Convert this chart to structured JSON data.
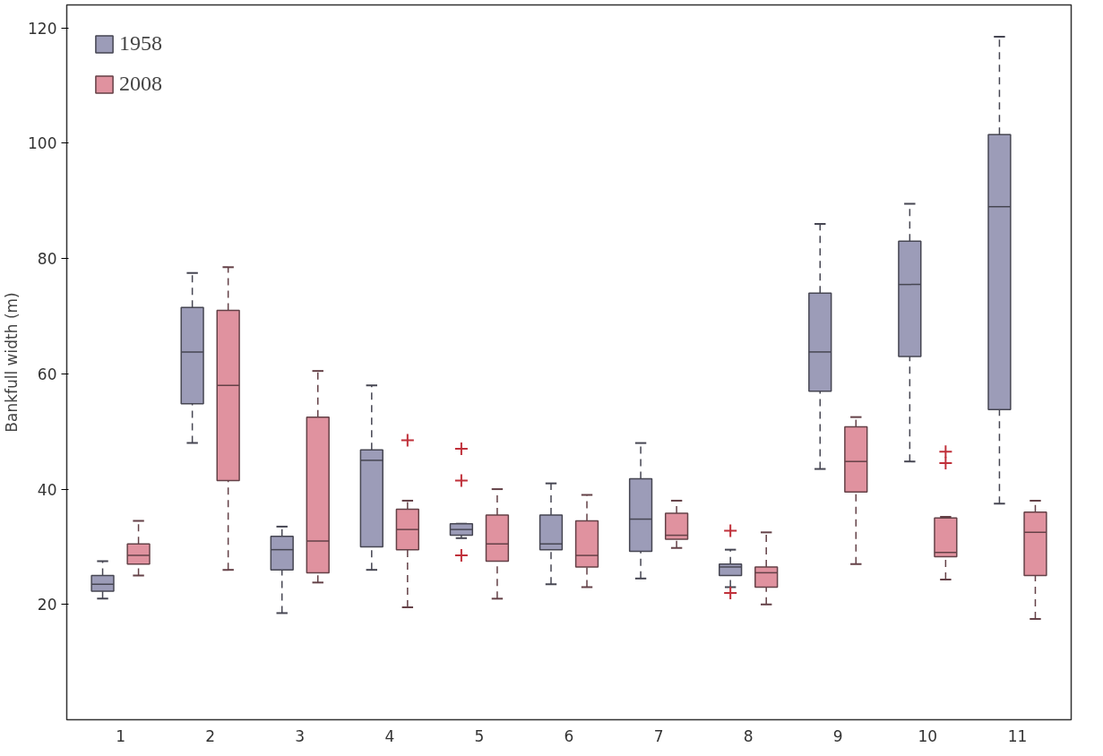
{
  "chart_data": {
    "type": "box",
    "ylabel": "Bankfull width (m)",
    "categories": [
      "1",
      "2",
      "3",
      "4",
      "5",
      "6",
      "7",
      "8",
      "9",
      "10",
      "11"
    ],
    "ylim": [
      0,
      124
    ],
    "yticks": [
      20,
      40,
      60,
      80,
      100,
      120
    ],
    "grid": false,
    "legend": "top left",
    "line_style": "dashed",
    "marker": "cross",
    "series": [
      {
        "name": "1958",
        "color": "#9c9cb8",
        "boxes": [
          {
            "low": 21,
            "q1": 22.3,
            "median": 23.5,
            "q3": 25,
            "high": 27.5
          },
          {
            "low": 48,
            "q1": 54.8,
            "median": 63.8,
            "q3": 71.5,
            "high": 77.5
          },
          {
            "low": 18.5,
            "q1": 26,
            "median": 29.5,
            "q3": 31.8,
            "high": 33.5
          },
          {
            "low": 26,
            "q1": 30,
            "median": 45,
            "q3": 46.8,
            "high": 58
          },
          {
            "low": 31.5,
            "q1": 32,
            "median": 33,
            "q3": 34,
            "high": 34,
            "outliers": [
              47,
              41.5,
              28.5
            ]
          },
          {
            "low": 23.5,
            "q1": 29.5,
            "median": 30.5,
            "q3": 35.5,
            "high": 41
          },
          {
            "low": 24.5,
            "q1": 29.2,
            "median": 34.8,
            "q3": 41.8,
            "high": 48
          },
          {
            "low": 23,
            "q1": 25,
            "median": 26.5,
            "q3": 27,
            "high": 29.5,
            "outliers": [
              32.8,
              22
            ]
          },
          {
            "low": 43.5,
            "q1": 57,
            "median": 63.8,
            "q3": 74,
            "high": 86
          },
          {
            "low": 44.8,
            "q1": 63,
            "median": 75.5,
            "q3": 83,
            "high": 89.5
          },
          {
            "low": 37.5,
            "q1": 53.8,
            "median": 89,
            "q3": 101.5,
            "high": 118.5
          }
        ]
      },
      {
        "name": "2008",
        "color": "#e0929f",
        "boxes": [
          {
            "low": 25,
            "q1": 27,
            "median": 28.5,
            "q3": 30.5,
            "high": 34.5
          },
          {
            "low": 26,
            "q1": 41.5,
            "median": 58,
            "q3": 71,
            "high": 78.5
          },
          {
            "low": 23.8,
            "q1": 25.5,
            "median": 31,
            "q3": 52.5,
            "high": 60.5
          },
          {
            "low": 19.5,
            "q1": 29.5,
            "median": 33,
            "q3": 36.5,
            "high": 38,
            "outliers": [
              48.5
            ]
          },
          {
            "low": 21,
            "q1": 27.5,
            "median": 30.5,
            "q3": 35.5,
            "high": 40
          },
          {
            "low": 23,
            "q1": 26.5,
            "median": 28.5,
            "q3": 34.5,
            "high": 39
          },
          {
            "low": 29.8,
            "q1": 31.3,
            "median": 32,
            "q3": 35.8,
            "high": 38
          },
          {
            "low": 20,
            "q1": 23,
            "median": 25.5,
            "q3": 26.5,
            "high": 32.5
          },
          {
            "low": 27,
            "q1": 39.5,
            "median": 44.8,
            "q3": 50.8,
            "high": 52.5
          },
          {
            "low": 24.3,
            "q1": 28.3,
            "median": 29,
            "q3": 35,
            "high": 35.2,
            "outliers": [
              46.5,
              44.5
            ]
          },
          {
            "low": 17.5,
            "q1": 25,
            "median": 32.5,
            "q3": 36,
            "high": 38
          }
        ]
      }
    ]
  }
}
